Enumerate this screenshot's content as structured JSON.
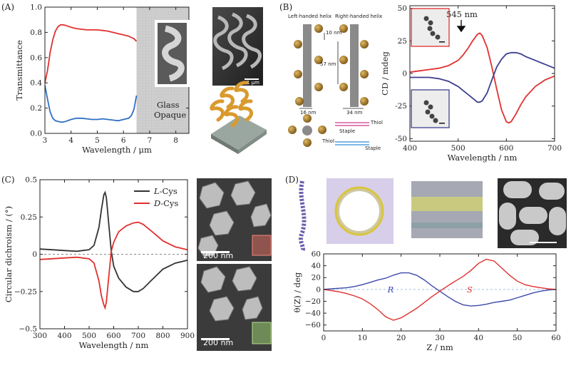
{
  "colors": {
    "red": "#e0312f",
    "blue": "#2f6fc2",
    "navy": "#3c3f8f",
    "black": "#333333",
    "gray_band": "#c9c9c9",
    "sem_dark": "#2c2c2c",
    "gold": "#a47c2e"
  },
  "panelA": {
    "label": "(A)",
    "glass_label_1": "Glass",
    "glass_label_2": "Opaque",
    "scale_text": "1 μm",
    "chart_data": {
      "type": "line",
      "xlabel": "Wavelength / μm",
      "ylabel": "Transmittance",
      "xlim": [
        3,
        8.5
      ],
      "ylim": [
        0,
        1.0
      ],
      "xticks": [
        "3",
        "4",
        "5",
        "6",
        "7",
        "8"
      ],
      "yticks": [
        "0.0",
        "0.2",
        "0.4",
        "0.6",
        "0.8",
        "1.0"
      ],
      "shaded_region": [
        6.5,
        8.5
      ],
      "series": [
        {
          "color": "#e0312f",
          "x": [
            3.0,
            3.1,
            3.2,
            3.3,
            3.4,
            3.5,
            3.6,
            3.7,
            3.8,
            4.0,
            4.2,
            4.4,
            4.6,
            4.8,
            5.0,
            5.2,
            5.4,
            5.6,
            5.8,
            6.0,
            6.2,
            6.3,
            6.4,
            6.5
          ],
          "y": [
            0.4,
            0.5,
            0.64,
            0.74,
            0.81,
            0.845,
            0.86,
            0.86,
            0.855,
            0.84,
            0.83,
            0.825,
            0.82,
            0.82,
            0.82,
            0.815,
            0.81,
            0.8,
            0.79,
            0.78,
            0.77,
            0.76,
            0.75,
            0.73
          ]
        },
        {
          "color": "#2f6fc2",
          "x": [
            3.0,
            3.1,
            3.2,
            3.3,
            3.4,
            3.5,
            3.6,
            3.7,
            3.8,
            4.0,
            4.2,
            4.4,
            4.6,
            4.8,
            5.0,
            5.2,
            5.4,
            5.6,
            5.8,
            6.0,
            6.2,
            6.3,
            6.4,
            6.5
          ],
          "y": [
            0.38,
            0.27,
            0.17,
            0.12,
            0.1,
            0.095,
            0.09,
            0.09,
            0.095,
            0.11,
            0.12,
            0.12,
            0.115,
            0.11,
            0.11,
            0.115,
            0.11,
            0.105,
            0.1,
            0.11,
            0.12,
            0.14,
            0.19,
            0.3
          ]
        }
      ]
    }
  },
  "panelB": {
    "label": "(B)",
    "left_helix": "Left-handed helix",
    "right_helix": "Right-handed helix",
    "dim_10": "10 nm",
    "dim_57": "57 nm",
    "dim_16": "16 nm",
    "dim_34": "34 nm",
    "thiol_1": "Thiol",
    "staple_1": "Staple",
    "thiol_2": "Thiol",
    "staple_2": "Staple",
    "peak_label": "545 nm",
    "chart_data": {
      "type": "line",
      "xlabel": "Wavelength / nm",
      "ylabel": "CD / mdeg",
      "xlim": [
        400,
        700
      ],
      "ylim": [
        -52,
        52
      ],
      "xticks": [
        "400",
        "500",
        "600",
        "700"
      ],
      "yticks": [
        "-50",
        "-25",
        "0",
        "25",
        "50"
      ],
      "series": [
        {
          "color": "#e0312f",
          "x": [
            400,
            420,
            440,
            460,
            480,
            500,
            510,
            520,
            530,
            540,
            545,
            550,
            560,
            570,
            580,
            590,
            600,
            605,
            610,
            620,
            630,
            640,
            660,
            680,
            700
          ],
          "y": [
            1,
            2,
            3,
            4,
            6,
            10,
            14,
            19,
            25,
            30,
            31,
            29,
            20,
            5,
            -12,
            -28,
            -37,
            -38,
            -37,
            -31,
            -24,
            -18,
            -10,
            -5,
            -2
          ]
        },
        {
          "color": "#3c3f8f",
          "x": [
            400,
            420,
            440,
            460,
            480,
            500,
            510,
            520,
            530,
            540,
            545,
            550,
            560,
            570,
            580,
            590,
            600,
            610,
            620,
            630,
            640,
            660,
            680,
            700
          ],
          "y": [
            -3,
            -3,
            -3,
            -4,
            -6,
            -10,
            -13,
            -16,
            -19,
            -22,
            -22,
            -21,
            -15,
            -5,
            5,
            11,
            15,
            16,
            16,
            15,
            13,
            10,
            7,
            4
          ]
        }
      ]
    }
  },
  "panelC": {
    "label": "(C)",
    "scale_1": "200 nm",
    "scale_2": "200 nm",
    "chart_data": {
      "type": "line",
      "xlabel": "Wavelength / nm",
      "ylabel": "Circular dichroism / (°)",
      "xlim": [
        300,
        900
      ],
      "ylim": [
        -0.5,
        0.5
      ],
      "xticks": [
        "300",
        "400",
        "500",
        "600",
        "700",
        "800",
        "900"
      ],
      "yticks": [
        "−0.5",
        "−0.25",
        "0",
        "0.25",
        "0.5"
      ],
      "series": [
        {
          "name": "L-Cys",
          "color": "#333333",
          "x": [
            300,
            350,
            400,
            450,
            500,
            520,
            540,
            550,
            560,
            565,
            570,
            580,
            590,
            600,
            620,
            650,
            680,
            700,
            720,
            750,
            800,
            850,
            900
          ],
          "y": [
            0.035,
            0.03,
            0.025,
            0.02,
            0.03,
            0.06,
            0.18,
            0.3,
            0.4,
            0.415,
            0.38,
            0.2,
            0.02,
            -0.08,
            -0.16,
            -0.22,
            -0.25,
            -0.25,
            -0.23,
            -0.18,
            -0.1,
            -0.06,
            -0.04
          ]
        },
        {
          "name": "D-Cys",
          "color": "#e0312f",
          "x": [
            300,
            350,
            400,
            450,
            500,
            520,
            540,
            550,
            560,
            565,
            570,
            580,
            590,
            600,
            620,
            650,
            680,
            700,
            720,
            750,
            800,
            850,
            900
          ],
          "y": [
            -0.035,
            -0.03,
            -0.025,
            -0.02,
            -0.03,
            -0.06,
            -0.18,
            -0.28,
            -0.34,
            -0.36,
            -0.32,
            -0.15,
            0.02,
            0.08,
            0.15,
            0.19,
            0.21,
            0.215,
            0.2,
            0.16,
            0.09,
            0.05,
            0.03
          ]
        }
      ],
      "legend": [
        "L-Cys",
        "D-Cys"
      ],
      "legend_placement": "top-right"
    }
  },
  "panelD": {
    "label": "(D)",
    "chart_data": {
      "type": "line",
      "xlabel": "Z / nm",
      "ylabel": "θ(Z) / deg",
      "xlim": [
        0,
        60
      ],
      "ylim": [
        -70,
        60
      ],
      "xticks": [
        "0",
        "10",
        "20",
        "30",
        "40",
        "50",
        "60"
      ],
      "yticks": [
        "60",
        "40",
        "20",
        "0",
        "−20",
        "−40",
        "−60"
      ],
      "series": [
        {
          "name": "R",
          "color": "#3d4aa8",
          "x": [
            0,
            2,
            4,
            6,
            8,
            10,
            12,
            14,
            16,
            18,
            20,
            22,
            24,
            26,
            28,
            30,
            32,
            34,
            36,
            38,
            40,
            42,
            44,
            46,
            48,
            50,
            52,
            54,
            56,
            58,
            60
          ],
          "y": [
            0,
            1,
            2,
            3,
            5,
            8,
            12,
            16,
            19,
            24,
            28,
            28,
            24,
            16,
            6,
            -3,
            -12,
            -20,
            -26,
            -28,
            -27,
            -25,
            -22,
            -20,
            -18,
            -14,
            -10,
            -6,
            -3,
            -1,
            0
          ]
        },
        {
          "name": "S",
          "color": "#e0312f",
          "x": [
            0,
            2,
            4,
            6,
            8,
            10,
            12,
            14,
            16,
            18,
            20,
            22,
            24,
            26,
            28,
            30,
            32,
            34,
            36,
            38,
            40,
            42,
            44,
            46,
            48,
            50,
            52,
            54,
            56,
            58,
            60
          ],
          "y": [
            0,
            -2,
            -4,
            -7,
            -11,
            -16,
            -24,
            -34,
            -46,
            -52,
            -48,
            -40,
            -32,
            -22,
            -12,
            -3,
            6,
            14,
            22,
            32,
            44,
            51,
            48,
            36,
            24,
            14,
            8,
            5,
            3,
            1,
            0
          ]
        }
      ],
      "dashed_reference_color": "#9fc3e8",
      "series_labels": [
        "R",
        "S"
      ]
    }
  }
}
